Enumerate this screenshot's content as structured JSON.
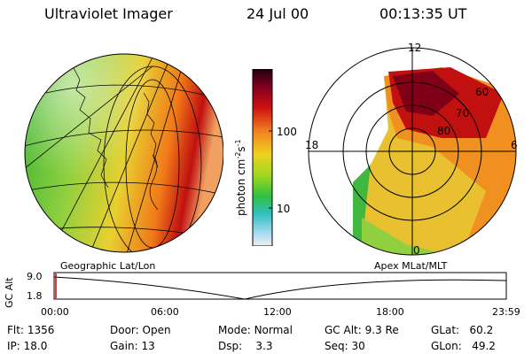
{
  "header": {
    "instrument": "Ultraviolet Imager",
    "date": "24 Jul 00",
    "time": "00:13:35 UT"
  },
  "colorbar": {
    "unit_label": "photon cm",
    "unit_exp1": "-2",
    "unit_mid": "s",
    "unit_exp2": "-1",
    "tick_high": "100",
    "tick_low": "10"
  },
  "polar_plot": {
    "mlt_top": "12",
    "mlt_left": "18",
    "mlt_right": "6",
    "mlt_bottom": "0",
    "lat_60": "60",
    "lat_70": "70",
    "lat_80": "80"
  },
  "panel_labels": {
    "left": "Geographic Lat/Lon",
    "right": "Apex MLat/MLT"
  },
  "timeline": {
    "axis_label": "GC Alt",
    "y_high": "9.0",
    "y_low": "1.8",
    "ticks": [
      "00:00",
      "06:00",
      "12:00",
      "18:00",
      "23:59"
    ]
  },
  "status": {
    "flt_label": "Flt:",
    "flt_value": "1356",
    "ip_label": "IP:",
    "ip_value": "18.0",
    "door_label": "Door:",
    "door_value": "Open",
    "gain_label": "Gain:",
    "gain_value": "13",
    "mode_label": "Mode:",
    "mode_value": "Normal",
    "dsp_label": "Dsp:",
    "dsp_value": "3.3",
    "gcalt_label": "GC Alt:",
    "gcalt_value": "9.3 Re",
    "seq_label": "Seq:",
    "seq_value": "30",
    "glat_label": "GLat:",
    "glat_value": "60.2",
    "glon_label": "GLon:",
    "glon_value": "49.2"
  }
}
